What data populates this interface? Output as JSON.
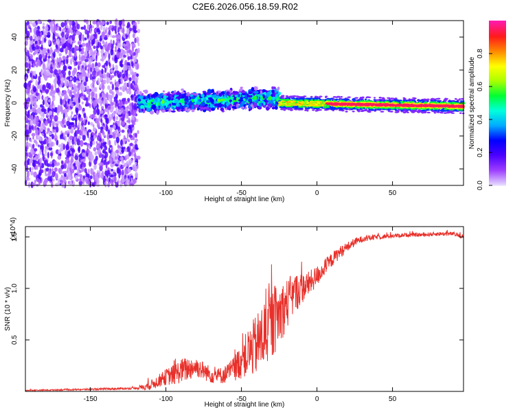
{
  "title": "C2E6.2026.056.18.59.R02",
  "chart_data": [
    {
      "type": "heatmap",
      "title": "C2E6.2026.056.18.59.R02",
      "xlabel": "Height of straight line (km)",
      "ylabel": "Frequency (Hz)",
      "xlim": [
        -193,
        97
      ],
      "ylim": [
        -50,
        50
      ],
      "x_ticks": [
        -150,
        -100,
        -50,
        0,
        50
      ],
      "x_tick_labels": [
        "-150",
        "-100",
        "-50",
        "0",
        "50"
      ],
      "y_ticks": [
        -40,
        -20,
        0,
        20,
        40
      ],
      "y_tick_labels": [
        "-40",
        "-20",
        "0",
        "20",
        "40"
      ],
      "colorbar": {
        "label": "Normalized spectral amplitude",
        "range": [
          0,
          1
        ],
        "ticks": [
          0.0,
          0.2,
          0.4,
          0.6,
          0.8
        ],
        "tick_labels": [
          "0.0",
          "0.2",
          "0.4",
          "0.6",
          "0.8"
        ],
        "colors": [
          "#e6d9ff",
          "#9c3dff",
          "#4b00ff",
          "#0000ff",
          "#00aaff",
          "#00ffdd",
          "#00ff33",
          "#aaff00",
          "#ffff00",
          "#ff8800",
          "#ff1a1a",
          "#ff1aaa"
        ]
      },
      "regions": [
        {
          "x_range": [
            -193,
            -118
          ],
          "freq_range": [
            -50,
            50
          ],
          "amplitude": 0.15,
          "description": "broadband noise"
        },
        {
          "x_range": [
            -118,
            -25
          ],
          "center_freq": 0,
          "freq_halfwidth": 8,
          "amplitude": 0.45,
          "center_freq_end": 3
        },
        {
          "x_range": [
            -25,
            97
          ],
          "center_freq": 0,
          "freq_halfwidth": 3,
          "amplitude": 0.95,
          "center_freq_end": -2
        }
      ]
    },
    {
      "type": "line",
      "xlabel": "Height of straight line (km)",
      "ylabel": "SNR (10 * v/v)",
      "y_multiplier": "(x10^4)",
      "xlim": [
        -193,
        97
      ],
      "ylim": [
        0,
        1.6
      ],
      "x_ticks": [
        -150,
        -100,
        -50,
        0,
        50
      ],
      "x_tick_labels": [
        "-150",
        "-100",
        "-50",
        "0",
        "50"
      ],
      "y_ticks": [
        0.5,
        1.0,
        1.5
      ],
      "y_tick_labels": [
        "0.5",
        "1.0",
        "1.5"
      ],
      "series": [
        {
          "name": "SNR",
          "color": "#e8302a",
          "x": [
            -193,
            -150,
            -120,
            -112,
            -105,
            -100,
            -95,
            -90,
            -85,
            -80,
            -75,
            -70,
            -65,
            -60,
            -55,
            -50,
            -45,
            -40,
            -35,
            -30,
            -25,
            -20,
            -15,
            -10,
            -5,
            0,
            5,
            10,
            15,
            20,
            25,
            30,
            40,
            50,
            60,
            70,
            80,
            90,
            97
          ],
          "y": [
            0.01,
            0.02,
            0.03,
            0.05,
            0.1,
            0.14,
            0.16,
            0.2,
            0.22,
            0.24,
            0.2,
            0.16,
            0.15,
            0.17,
            0.22,
            0.3,
            0.38,
            0.45,
            0.55,
            0.65,
            0.75,
            0.85,
            0.95,
            1.0,
            1.05,
            1.12,
            1.2,
            1.28,
            1.35,
            1.4,
            1.45,
            1.48,
            1.5,
            1.51,
            1.52,
            1.52,
            1.53,
            1.53,
            1.5
          ],
          "noise": [
            0.005,
            0.008,
            0.01,
            0.04,
            0.06,
            0.08,
            0.1,
            0.12,
            0.12,
            0.1,
            0.09,
            0.08,
            0.08,
            0.09,
            0.12,
            0.18,
            0.25,
            0.3,
            0.35,
            0.35,
            0.3,
            0.25,
            0.2,
            0.15,
            0.12,
            0.1,
            0.08,
            0.07,
            0.06,
            0.05,
            0.04,
            0.03,
            0.025,
            0.02,
            0.02,
            0.02,
            0.02,
            0.02,
            0.02
          ]
        }
      ]
    }
  ]
}
